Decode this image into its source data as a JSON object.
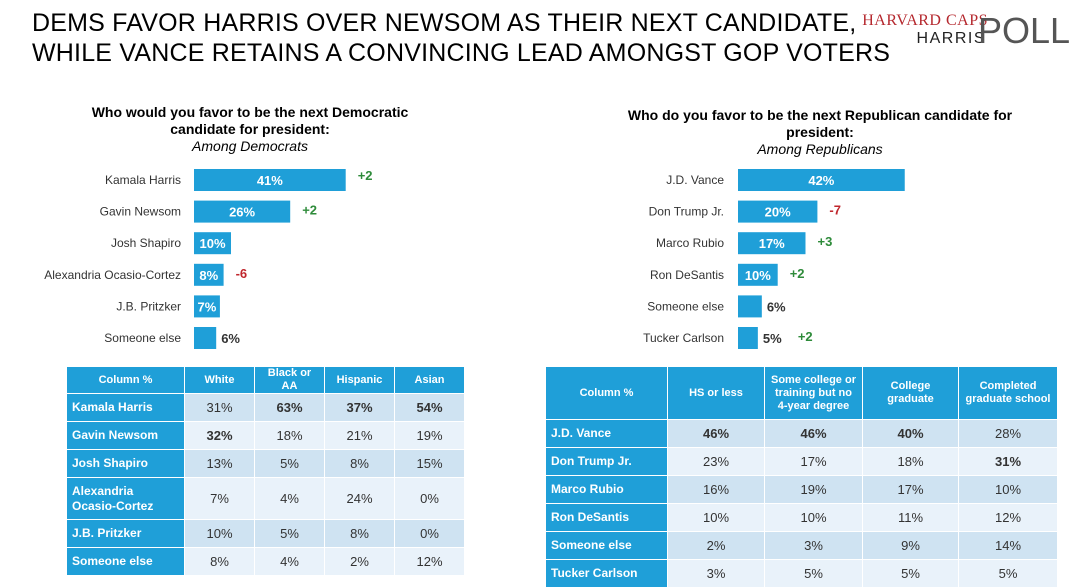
{
  "header": {
    "title_line1": "DEMS FAVOR HARRIS OVER NEWSOM AS THEIR NEXT CANDIDATE,",
    "title_line2": "WHILE VANCE RETAINS A CONVINCING LEAD AMONGST GOP VOTERS",
    "logo_line1": "HARVARD CAPS",
    "logo_line2": "HARRIS",
    "logo_line3": "POLL"
  },
  "colors": {
    "bar": "#1f9fd8",
    "positive_change": "#2e8b3a",
    "negative_change": "#c0262c",
    "table_header": "#1f9fd8",
    "row_odd": "#cfe3f2",
    "row_even": "#e9f2fa"
  },
  "chart_data": [
    {
      "type": "bar",
      "orientation": "horizontal",
      "title_line1": "Who would you favor to be the next Democratic",
      "title_line2": "candidate for president:",
      "subtitle": "Among Democrats",
      "categories": [
        "Kamala Harris",
        "Gavin Newsom",
        "Josh Shapiro",
        "Alexandria Ocasio-Cortez",
        "J.B. Pritzker",
        "Someone else"
      ],
      "values": [
        41,
        26,
        10,
        8,
        7,
        6
      ],
      "value_labels": [
        "41%",
        "26%",
        "10%",
        "8%",
        "7%",
        "6%"
      ],
      "changes": [
        "+2",
        "+2",
        "",
        "-6",
        "",
        ""
      ]
    },
    {
      "type": "bar",
      "orientation": "horizontal",
      "title_line1": "Who do you favor to be the next Republican candidate for",
      "title_line2": "president:",
      "subtitle": "Among Republicans",
      "categories": [
        "J.D. Vance",
        "Don Trump Jr.",
        "Marco Rubio",
        "Ron DeSantis",
        "Someone else",
        "Tucker Carlson"
      ],
      "values": [
        42,
        20,
        17,
        10,
        6,
        5
      ],
      "value_labels": [
        "42%",
        "20%",
        "17%",
        "10%",
        "6%",
        "5%"
      ],
      "changes": [
        "",
        "-7",
        "+3",
        "+2",
        "",
        "+2"
      ]
    },
    {
      "type": "table",
      "columns": [
        "Column %",
        "White",
        "Black or AA",
        "Hispanic",
        "Asian"
      ],
      "rows": [
        {
          "label": "Kamala Harris",
          "cells": [
            "31%",
            "63%",
            "37%",
            "54%"
          ],
          "bold": [
            false,
            true,
            true,
            true
          ]
        },
        {
          "label": "Gavin Newsom",
          "cells": [
            "32%",
            "18%",
            "21%",
            "19%"
          ],
          "bold": [
            true,
            false,
            false,
            false
          ]
        },
        {
          "label": "Josh Shapiro",
          "cells": [
            "13%",
            "5%",
            "8%",
            "15%"
          ],
          "bold": [
            false,
            false,
            false,
            false
          ]
        },
        {
          "label": "Alexandria Ocasio-Cortez",
          "cells": [
            "7%",
            "4%",
            "24%",
            "0%"
          ],
          "bold": [
            false,
            false,
            false,
            false
          ]
        },
        {
          "label": "J.B. Pritzker",
          "cells": [
            "10%",
            "5%",
            "8%",
            "0%"
          ],
          "bold": [
            false,
            false,
            false,
            false
          ]
        },
        {
          "label": "Someone else",
          "cells": [
            "8%",
            "4%",
            "2%",
            "12%"
          ],
          "bold": [
            false,
            false,
            false,
            false
          ]
        }
      ]
    },
    {
      "type": "table",
      "columns": [
        "Column %",
        "HS or less",
        "Some college or training but no 4-year degree",
        "College graduate",
        "Completed graduate school"
      ],
      "rows": [
        {
          "label": "J.D. Vance",
          "cells": [
            "46%",
            "46%",
            "40%",
            "28%"
          ],
          "bold": [
            true,
            true,
            true,
            false
          ]
        },
        {
          "label": "Don Trump Jr.",
          "cells": [
            "23%",
            "17%",
            "18%",
            "31%"
          ],
          "bold": [
            false,
            false,
            false,
            true
          ]
        },
        {
          "label": "Marco Rubio",
          "cells": [
            "16%",
            "19%",
            "17%",
            "10%"
          ],
          "bold": [
            false,
            false,
            false,
            false
          ]
        },
        {
          "label": "Ron DeSantis",
          "cells": [
            "10%",
            "10%",
            "11%",
            "12%"
          ],
          "bold": [
            false,
            false,
            false,
            false
          ]
        },
        {
          "label": "Someone else",
          "cells": [
            "2%",
            "3%",
            "9%",
            "14%"
          ],
          "bold": [
            false,
            false,
            false,
            false
          ]
        },
        {
          "label": "Tucker Carlson",
          "cells": [
            "3%",
            "5%",
            "5%",
            "5%"
          ],
          "bold": [
            false,
            false,
            false,
            false
          ]
        }
      ]
    }
  ]
}
